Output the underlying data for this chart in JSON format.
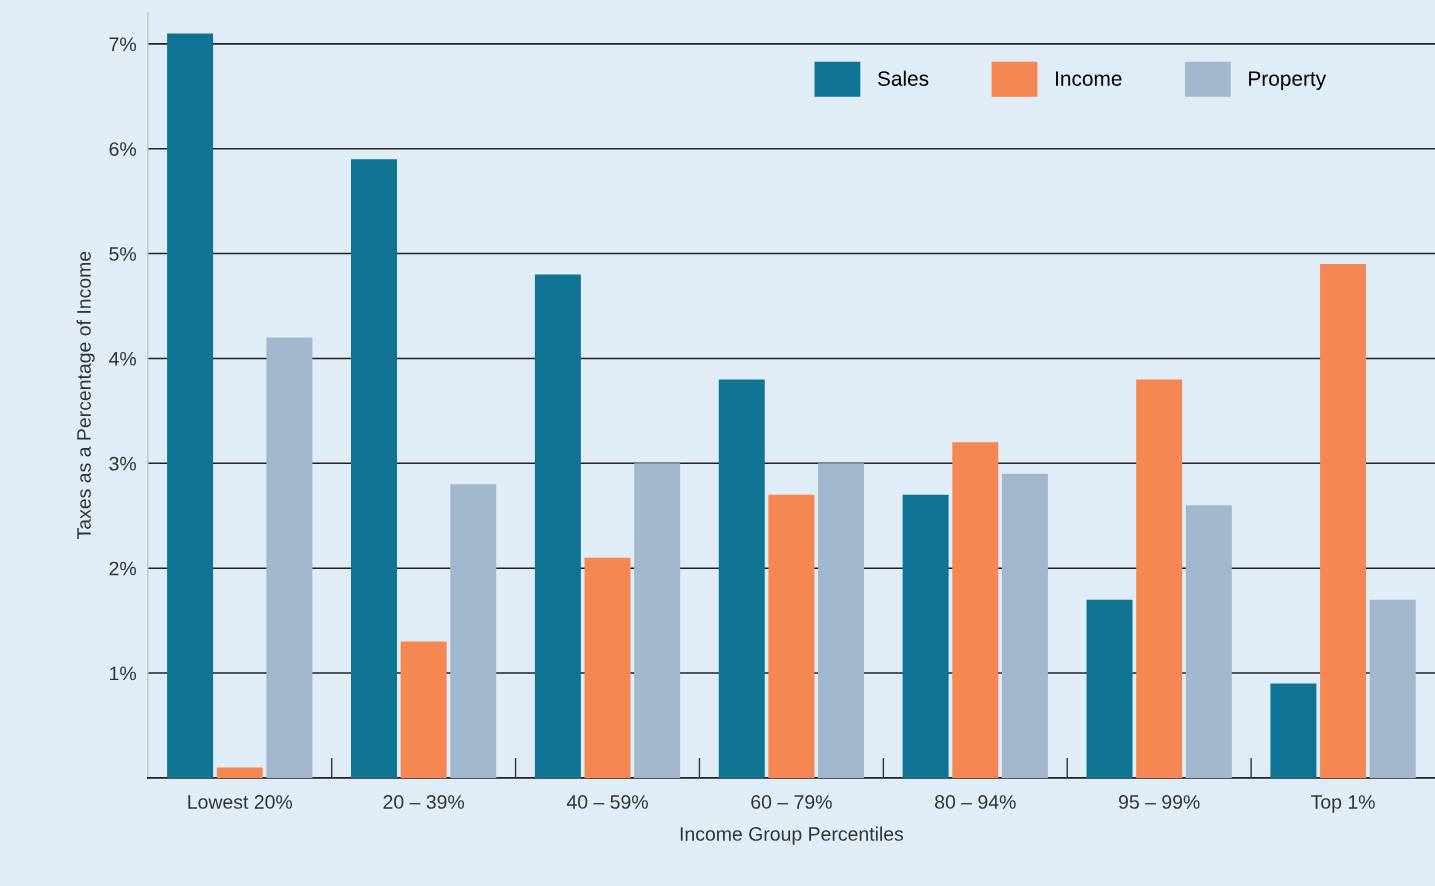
{
  "chart_data": {
    "type": "bar",
    "xlabel": "Income Group Percentiles",
    "ylabel": "Taxes as a Percentage of Income",
    "categories": [
      "Lowest 20%",
      "20 – 39%",
      "40 – 59%",
      "60 – 79%",
      "80 – 94%",
      "95 – 99%",
      "Top 1%"
    ],
    "series": [
      {
        "name": "Sales",
        "color": "#0f7494",
        "values": [
          7.1,
          5.9,
          4.8,
          3.8,
          2.7,
          1.7,
          0.9
        ]
      },
      {
        "name": "Income",
        "color": "#f58753",
        "values": [
          0.1,
          1.3,
          2.1,
          2.7,
          3.2,
          3.8,
          4.9
        ]
      },
      {
        "name": "Property",
        "color": "#a2b7cd",
        "values": [
          4.2,
          2.8,
          3.0,
          3.0,
          2.9,
          2.6,
          1.7
        ]
      }
    ],
    "ylim": [
      0,
      7.3
    ],
    "yticks": [
      {
        "value": 1,
        "label": "1%"
      },
      {
        "value": 2,
        "label": "2%"
      },
      {
        "value": 3,
        "label": "3%"
      },
      {
        "value": 4,
        "label": "4%"
      },
      {
        "value": 5,
        "label": "5%"
      },
      {
        "value": 6,
        "label": "6%"
      },
      {
        "value": 7,
        "label": "7%"
      }
    ],
    "grid": "y",
    "legend": "top right"
  }
}
